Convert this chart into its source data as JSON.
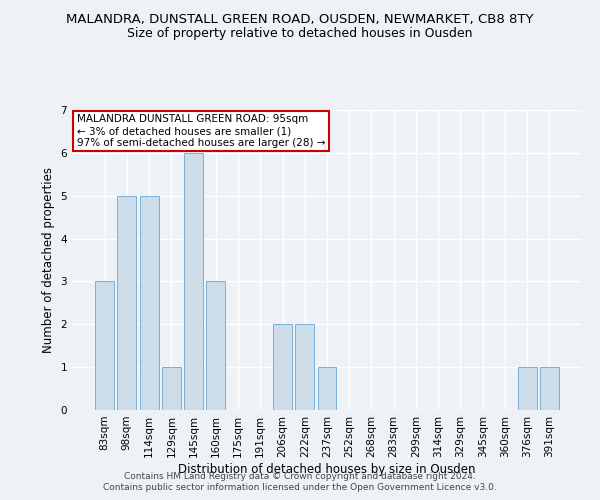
{
  "title": "MALANDRA, DUNSTALL GREEN ROAD, OUSDEN, NEWMARKET, CB8 8TY",
  "subtitle": "Size of property relative to detached houses in Ousden",
  "xlabel": "Distribution of detached houses by size in Ousden",
  "ylabel": "Number of detached properties",
  "categories": [
    "83sqm",
    "98sqm",
    "114sqm",
    "129sqm",
    "145sqm",
    "160sqm",
    "175sqm",
    "191sqm",
    "206sqm",
    "222sqm",
    "237sqm",
    "252sqm",
    "268sqm",
    "283sqm",
    "299sqm",
    "314sqm",
    "329sqm",
    "345sqm",
    "360sqm",
    "376sqm",
    "391sqm"
  ],
  "values": [
    3,
    5,
    5,
    1,
    6,
    3,
    0,
    0,
    2,
    2,
    1,
    0,
    0,
    0,
    0,
    0,
    0,
    0,
    0,
    1,
    1
  ],
  "bar_color": "#ccdce8",
  "bar_edge_color": "#7aafd4",
  "annotation_text": "MALANDRA DUNSTALL GREEN ROAD: 95sqm\n← 3% of detached houses are smaller (1)\n97% of semi-detached houses are larger (28) →",
  "annotation_box_color": "#ffffff",
  "annotation_box_edge": "#cc0000",
  "footer1": "Contains HM Land Registry data © Crown copyright and database right 2024.",
  "footer2": "Contains public sector information licensed under the Open Government Licence v3.0.",
  "ylim": [
    0,
    7
  ],
  "yticks": [
    0,
    1,
    2,
    3,
    4,
    5,
    6,
    7
  ],
  "background_color": "#eef2f7",
  "grid_color": "#ffffff",
  "title_fontsize": 9.5,
  "subtitle_fontsize": 9,
  "axis_fontsize": 8.5,
  "tick_fontsize": 7.5,
  "footer_fontsize": 6.5
}
